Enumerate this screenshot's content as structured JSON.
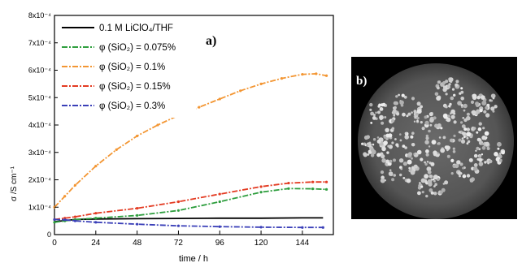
{
  "chart_data": {
    "type": "line",
    "panel_label": "a)",
    "xlabel": "time / h",
    "ylabel": "σ /S cm⁻¹",
    "xlim": [
      0,
      162
    ],
    "ylim": [
      0,
      0.0008
    ],
    "x_ticks": [
      0,
      24,
      48,
      72,
      96,
      120,
      144
    ],
    "y_ticks": [
      {
        "value": 0,
        "label": "0"
      },
      {
        "value": 0.0001,
        "label": "1x10⁻⁴"
      },
      {
        "value": 0.0002,
        "label": "2x10⁻⁴"
      },
      {
        "value": 0.0003,
        "label": "3x10⁻⁴"
      },
      {
        "value": 0.0004,
        "label": "4x10⁻⁴"
      },
      {
        "value": 0.0005,
        "label": "5x10⁻⁴"
      },
      {
        "value": 0.0006,
        "label": "6x10⁻⁴"
      },
      {
        "value": 0.0007,
        "label": "7x10⁻⁴"
      },
      {
        "value": 0.0008,
        "label": "8x10⁻⁴"
      }
    ],
    "legend_position": "top-left",
    "series": [
      {
        "name": "0.1 M LiClO₄/THF",
        "color": "#000000",
        "dash": "solid",
        "x": [
          0,
          12,
          24,
          48,
          72,
          96,
          120,
          144,
          156
        ],
        "y": [
          4.7e-05,
          5.5e-05,
          5.7e-05,
          5.8e-05,
          5.9e-05,
          6e-05,
          6e-05,
          6.1e-05,
          6.1e-05
        ]
      },
      {
        "name": "φ (SiO₂) = 0.075%",
        "color": "#2e9e3e",
        "dash": "dashdot",
        "x": [
          0,
          6,
          12,
          24,
          48,
          72,
          96,
          120,
          136,
          150,
          158
        ],
        "y": [
          4.5e-05,
          5e-05,
          5.5e-05,
          6e-05,
          7e-05,
          8.8e-05,
          0.00012,
          0.000155,
          0.000168,
          0.000167,
          0.000165
        ]
      },
      {
        "name": "φ (SiO₂) = 0.1%",
        "color": "#f39633",
        "dash": "dashdot",
        "x": [
          0,
          6,
          12,
          24,
          36,
          48,
          60,
          72,
          84,
          96,
          108,
          120,
          132,
          144,
          152,
          158
        ],
        "y": [
          0.0001,
          0.00014,
          0.00018,
          0.00025,
          0.00031,
          0.00036,
          0.0004,
          0.000435,
          0.000465,
          0.000495,
          0.000525,
          0.00055,
          0.00057,
          0.000585,
          0.000587,
          0.00058
        ]
      },
      {
        "name": "φ (SiO₂) = 0.15%",
        "color": "#e33b22",
        "dash": "dashdot",
        "x": [
          0,
          6,
          12,
          24,
          48,
          72,
          96,
          120,
          136,
          150,
          158
        ],
        "y": [
          5.5e-05,
          6e-05,
          6.5e-05,
          7.8e-05,
          9.6e-05,
          0.00012,
          0.000148,
          0.000175,
          0.000188,
          0.000192,
          0.000192
        ]
      },
      {
        "name": "φ (SiO₂) = 0.3%",
        "color": "#3a3fb8",
        "dash": "dashdot",
        "x": [
          0,
          6,
          12,
          24,
          48,
          72,
          96,
          120,
          144,
          156
        ],
        "y": [
          5.5e-05,
          5.4e-05,
          5e-05,
          4.5e-05,
          3.8e-05,
          3.2e-05,
          2.9e-05,
          2.7e-05,
          2.6e-05,
          2.6e-05
        ]
      }
    ]
  },
  "micrograph": {
    "panel_label": "b)"
  }
}
